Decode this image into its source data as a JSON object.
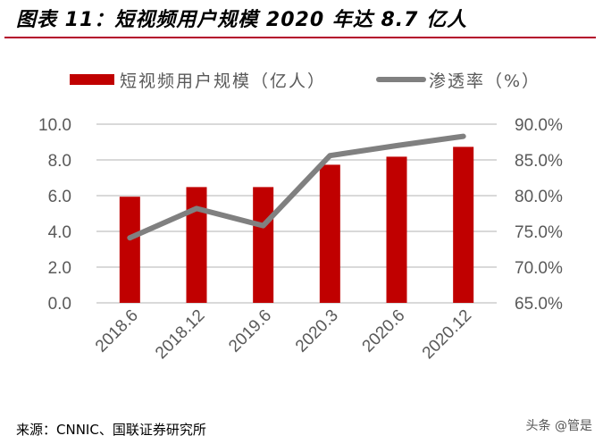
{
  "title": "图表 11：短视频用户规模 2020 年达 8.7 亿人",
  "source": "来源：CNNIC、国联证券研究所",
  "watermark": "头条 @管是",
  "chart_data": {
    "type": "bar+line",
    "categories": [
      "2018.6",
      "2018.12",
      "2019.6",
      "2020.3",
      "2020.6",
      "2020.12"
    ],
    "series": [
      {
        "name": "短视频用户规模（亿人）",
        "type": "bar",
        "axis": "left",
        "color": "#c00000",
        "values": [
          5.94,
          6.48,
          6.48,
          7.73,
          8.18,
          8.73
        ]
      },
      {
        "name": "渗透率（%）",
        "type": "line",
        "axis": "right",
        "color": "#808080",
        "values": [
          74.1,
          78.2,
          75.8,
          85.6,
          87.0,
          88.3
        ]
      }
    ],
    "left_axis": {
      "ylim": [
        0,
        10
      ],
      "ticks": [
        "0.0",
        "2.0",
        "4.0",
        "6.0",
        "8.0",
        "10.0"
      ]
    },
    "right_axis": {
      "ylim": [
        65,
        90
      ],
      "ticks": [
        "65.0%",
        "70.0%",
        "75.0%",
        "80.0%",
        "85.0%",
        "90.0%"
      ]
    },
    "grid": true,
    "legend": "top"
  }
}
